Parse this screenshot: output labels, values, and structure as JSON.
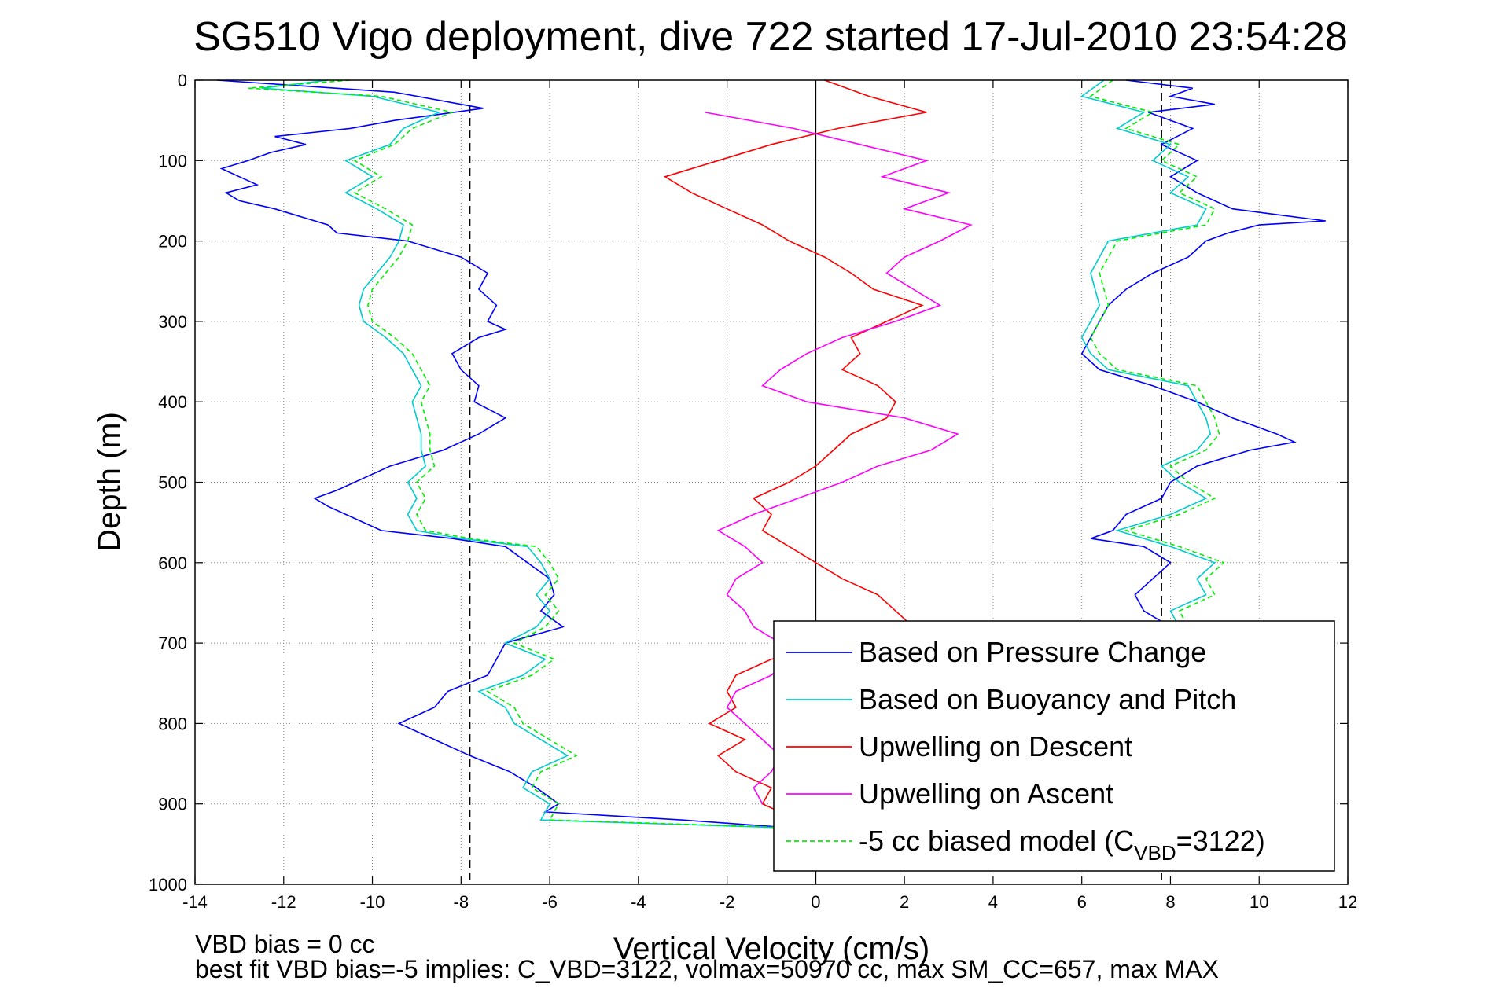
{
  "chart_data": {
    "type": "line",
    "title": "SG510 Vigo deployment, dive 722 started 17-Jul-2010 23:54:28",
    "xlabel": "Vertical Velocity (cm/s)",
    "ylabel": "Depth (m)",
    "xlim": [
      -14,
      12
    ],
    "ylim": [
      0,
      1000
    ],
    "y_reversed": true,
    "grid": true,
    "x_ticks": [
      -14,
      -12,
      -10,
      -8,
      -6,
      -4,
      -2,
      0,
      2,
      4,
      6,
      8,
      10,
      12
    ],
    "y_ticks": [
      0,
      100,
      200,
      300,
      400,
      500,
      600,
      700,
      800,
      900,
      1000
    ],
    "reference_lines": [
      {
        "x": -7.8,
        "style": "dashed"
      },
      {
        "x": 7.8,
        "style": "dashed"
      },
      {
        "x": 0,
        "style": "solid"
      }
    ],
    "legend_position": "bottom-right",
    "footnotes": [
      "VBD bias = 0 cc",
      "best fit VBD bias=-5 implies: C_VBD=3122, volmax=50970 cc, max SM_CC=657, max MAX"
    ],
    "series": [
      {
        "name": "Based on Pressure Change",
        "color": "#0000ff",
        "dash": "",
        "branches": [
          {
            "depth": [
              0,
              15,
              35,
              50,
              60,
              70,
              80,
              90,
              100,
              110,
              120,
              130,
              140,
              150,
              160,
              170,
              180,
              190,
              200,
              220,
              240,
              260,
              280,
              300,
              310,
              320,
              340,
              360,
              380,
              400,
              420,
              440,
              460,
              480,
              490,
              500,
              510,
              520,
              530,
              540,
              560,
              570,
              580,
              600,
              620,
              640,
              660,
              680,
              700,
              720,
              740,
              760,
              780,
              800,
              820,
              840,
              860,
              880,
              900,
              910,
              920,
              930
            ],
            "v": [
              -13.5,
              -9.5,
              -7.5,
              -9.5,
              -10.5,
              -12.2,
              -11.5,
              -12.3,
              -12.8,
              -13.4,
              -13.0,
              -12.6,
              -13.3,
              -13.0,
              -12.2,
              -11.6,
              -11.0,
              -10.8,
              -9.2,
              -8.0,
              -7.4,
              -7.6,
              -7.2,
              -7.4,
              -7.0,
              -7.6,
              -8.2,
              -8.0,
              -7.6,
              -7.7,
              -7.0,
              -7.6,
              -8.4,
              -9.6,
              -10.0,
              -10.4,
              -10.8,
              -11.3,
              -11.0,
              -10.6,
              -9.8,
              -8.2,
              -7.0,
              -6.5,
              -6.0,
              -5.9,
              -6.2,
              -5.7,
              -7.0,
              -7.2,
              -7.4,
              -8.3,
              -8.6,
              -9.4,
              -8.6,
              -7.8,
              -6.9,
              -6.3,
              -5.8,
              -6.1,
              -3.0,
              -0.5
            ]
          },
          {
            "depth": [
              0,
              10,
              20,
              30,
              40,
              60,
              80,
              100,
              120,
              140,
              160,
              175,
              180,
              190,
              200,
              220,
              240,
              260,
              280,
              300,
              320,
              340,
              360,
              380,
              400,
              420,
              440,
              450,
              460,
              480,
              500,
              520,
              540,
              560,
              570,
              580,
              600,
              620,
              640,
              660,
              680,
              700
            ],
            "v": [
              7.0,
              8.5,
              8.0,
              9.0,
              7.5,
              8.5,
              7.8,
              8.6,
              8.0,
              8.6,
              9.4,
              11.5,
              10.0,
              9.3,
              8.8,
              8.4,
              7.6,
              7.0,
              6.6,
              6.4,
              6.2,
              6.0,
              6.4,
              7.6,
              8.6,
              9.4,
              10.4,
              10.8,
              9.8,
              8.6,
              8.0,
              7.8,
              7.0,
              6.7,
              6.2,
              7.4,
              8.0,
              7.6,
              7.2,
              7.4,
              8.0,
              7.8
            ]
          }
        ]
      },
      {
        "name": "Based on Buoyancy and Pitch",
        "color": "#00cccc",
        "dash": "",
        "branches": [
          {
            "depth": [
              0,
              10,
              20,
              40,
              60,
              80,
              100,
              120,
              140,
              160,
              180,
              200,
              220,
              240,
              260,
              280,
              300,
              320,
              340,
              360,
              380,
              400,
              420,
              440,
              460,
              480,
              500,
              520,
              540,
              560,
              570,
              580,
              600,
              620,
              640,
              660,
              680,
              700,
              720,
              740,
              760,
              780,
              800,
              820,
              840,
              860,
              880,
              900,
              920,
              930
            ],
            "v": [
              -11.0,
              -12.5,
              -10.0,
              -8.5,
              -9.3,
              -9.6,
              -10.6,
              -10.0,
              -10.6,
              -9.9,
              -9.3,
              -9.4,
              -9.6,
              -9.9,
              -10.2,
              -10.3,
              -10.2,
              -9.7,
              -9.3,
              -9.1,
              -8.9,
              -9.1,
              -9.0,
              -8.9,
              -8.9,
              -8.8,
              -9.2,
              -9.0,
              -9.2,
              -9.0,
              -8.0,
              -6.5,
              -6.2,
              -6.0,
              -6.3,
              -6.0,
              -6.3,
              -7.0,
              -6.1,
              -6.6,
              -7.6,
              -7.0,
              -6.8,
              -6.2,
              -5.6,
              -6.4,
              -6.6,
              -6.0,
              -6.2,
              -0.5
            ]
          },
          {
            "depth": [
              0,
              20,
              40,
              60,
              80,
              100,
              120,
              140,
              160,
              180,
              200,
              220,
              240,
              260,
              280,
              300,
              320,
              340,
              360,
              380,
              400,
              420,
              440,
              460,
              480,
              500,
              520,
              540,
              560,
              580,
              600,
              620,
              640,
              660,
              680,
              700
            ],
            "v": [
              6.5,
              6.0,
              7.4,
              6.8,
              8.0,
              7.6,
              8.4,
              8.0,
              8.8,
              8.6,
              6.6,
              6.4,
              6.2,
              6.3,
              6.4,
              6.2,
              6.0,
              6.2,
              6.6,
              8.4,
              8.6,
              8.8,
              8.9,
              8.6,
              7.8,
              8.2,
              8.8,
              8.0,
              6.8,
              8.0,
              9.0,
              8.6,
              8.8,
              8.0,
              8.2,
              8.4
            ]
          }
        ]
      },
      {
        "name": "Upwelling on Descent",
        "color": "#ff0000",
        "dash": "",
        "branches": [
          {
            "depth": [
              0,
              20,
              40,
              60,
              80,
              100,
              120,
              140,
              160,
              180,
              200,
              220,
              240,
              260,
              280,
              300,
              320,
              340,
              360,
              380,
              400,
              420,
              440,
              460,
              480,
              500,
              520,
              540,
              560,
              580,
              600,
              620,
              640,
              660,
              680,
              700,
              720,
              740,
              760,
              780,
              800,
              820,
              840,
              860,
              880,
              900,
              920
            ],
            "v": [
              0.2,
              1.2,
              2.5,
              0.5,
              -1.0,
              -2.2,
              -3.4,
              -2.8,
              -2.0,
              -1.2,
              -0.6,
              0.2,
              0.8,
              1.3,
              2.4,
              1.6,
              0.8,
              1.0,
              0.6,
              1.4,
              1.8,
              1.6,
              0.8,
              0.4,
              0.0,
              -0.6,
              -1.4,
              -1.0,
              -1.2,
              -0.6,
              0.0,
              0.6,
              1.4,
              1.8,
              2.2,
              1.0,
              -1.0,
              -1.8,
              -2.0,
              -1.8,
              -2.4,
              -1.6,
              -2.2,
              -1.8,
              -1.0,
              -1.2,
              -0.4
            ]
          }
        ]
      },
      {
        "name": "Upwelling on Ascent",
        "color": "#ff00ff",
        "dash": "",
        "branches": [
          {
            "depth": [
              40,
              60,
              80,
              100,
              120,
              140,
              160,
              180,
              200,
              220,
              240,
              260,
              280,
              300,
              320,
              340,
              360,
              380,
              400,
              420,
              440,
              460,
              480,
              500,
              520,
              540,
              560,
              580,
              600,
              620,
              640,
              660,
              680,
              700,
              720,
              740,
              760,
              780,
              800,
              820,
              840,
              860,
              880,
              900
            ],
            "v": [
              -2.5,
              -0.5,
              1.0,
              2.5,
              1.5,
              3.0,
              2.0,
              3.5,
              2.8,
              2.0,
              1.6,
              2.2,
              2.8,
              1.8,
              0.6,
              -0.2,
              -0.8,
              -1.2,
              -0.2,
              2.0,
              3.2,
              2.6,
              1.4,
              0.6,
              -0.4,
              -1.4,
              -2.2,
              -1.6,
              -1.2,
              -1.8,
              -2.0,
              -1.6,
              -1.4,
              -0.8,
              -0.6,
              -1.0,
              -1.8,
              -2.0,
              -1.6,
              -1.2,
              -0.8,
              -1.0,
              -1.4,
              -1.2
            ]
          }
        ]
      },
      {
        "name": "-5 cc biased model",
        "legend_text": "-5 cc biased model (C",
        "legend_sub": "VBD",
        "legend_tail": "=3122)",
        "color": "#00ee00",
        "dash": "6,4",
        "branches": [
          {
            "depth": [
              0,
              10,
              20,
              40,
              60,
              80,
              100,
              120,
              140,
              160,
              180,
              200,
              220,
              240,
              260,
              280,
              300,
              320,
              340,
              360,
              380,
              400,
              420,
              440,
              460,
              480,
              500,
              520,
              540,
              560,
              570,
              580,
              600,
              620,
              640,
              660,
              680,
              700,
              720,
              740,
              760,
              780,
              800,
              820,
              840,
              860,
              880,
              900,
              920,
              930
            ],
            "v": [
              -10.5,
              -12.8,
              -9.8,
              -8.2,
              -9.1,
              -9.5,
              -10.4,
              -9.8,
              -10.4,
              -9.7,
              -9.1,
              -9.2,
              -9.4,
              -9.7,
              -10.0,
              -10.1,
              -10.0,
              -9.5,
              -9.1,
              -8.9,
              -8.7,
              -8.9,
              -8.8,
              -8.7,
              -8.7,
              -8.6,
              -9.0,
              -8.8,
              -9.0,
              -8.8,
              -7.8,
              -6.3,
              -6.0,
              -5.8,
              -6.1,
              -5.8,
              -6.1,
              -6.8,
              -5.9,
              -6.4,
              -7.4,
              -6.8,
              -6.6,
              -6.0,
              -5.4,
              -6.2,
              -6.4,
              -5.8,
              -6.0,
              -0.3
            ]
          },
          {
            "depth": [
              0,
              20,
              40,
              60,
              80,
              100,
              120,
              140,
              160,
              180,
              200,
              220,
              240,
              260,
              280,
              300,
              320,
              340,
              360,
              380,
              400,
              420,
              440,
              460,
              480,
              500,
              520,
              540,
              560,
              580,
              600,
              620,
              640,
              660,
              680,
              700
            ],
            "v": [
              6.7,
              6.2,
              7.6,
              7.0,
              8.2,
              7.8,
              8.6,
              8.2,
              9.0,
              8.8,
              6.8,
              6.6,
              6.4,
              6.5,
              6.6,
              6.4,
              6.2,
              6.4,
              6.8,
              8.6,
              8.8,
              9.0,
              9.1,
              8.8,
              8.0,
              8.4,
              9.0,
              8.2,
              7.0,
              8.2,
              9.2,
              8.8,
              9.0,
              8.2,
              8.4,
              8.6
            ]
          }
        ]
      }
    ]
  }
}
